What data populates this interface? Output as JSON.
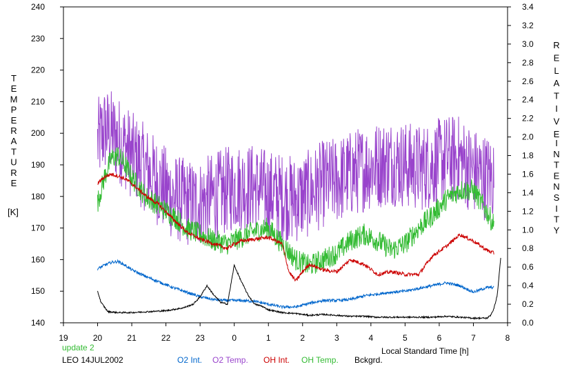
{
  "chart_data": {
    "type": "line",
    "title": "",
    "xlabel": "Local Standard Time [h]",
    "ylabel_left_letters": [
      "T",
      "E",
      "M",
      "P",
      "E",
      "R",
      "A",
      "T",
      "U",
      "R",
      "E"
    ],
    "ylabel_left_unit": "[K]",
    "ylabel_right_row1": [
      "R",
      "E",
      "L",
      "A",
      "T",
      "I",
      "V",
      "E"
    ],
    "ylabel_right_row2": [
      "I",
      "N",
      "T",
      "E",
      "N",
      "S",
      "I",
      "T",
      "Y"
    ],
    "x_tick_labels": [
      "19",
      "20",
      "21",
      "22",
      "23",
      "0",
      "1",
      "2",
      "3",
      "4",
      "5",
      "6",
      "7",
      "8"
    ],
    "xlim": [
      19,
      32
    ],
    "ylim_left": [
      140,
      240
    ],
    "ylim_right": [
      0,
      3.4
    ],
    "y_left_ticks": [
      "140",
      "150",
      "160",
      "170",
      "180",
      "190",
      "200",
      "210",
      "220",
      "230",
      "240"
    ],
    "y_right_ticks": [
      "0.0",
      "0.2",
      "0.4",
      "0.6",
      "0.8",
      "1.0",
      "1.2",
      "1.4",
      "1.6",
      "1.8",
      "2.0",
      "2.2",
      "2.4",
      "2.6",
      "2.8",
      "3.0",
      "3.2",
      "3.4"
    ],
    "grid": false,
    "legend_placement": "bottom",
    "update_note": "update 2",
    "site_date": "LEO 14JUL2002",
    "series": [
      {
        "name": "O2 Int.",
        "color": "#0066cc",
        "axis": "right",
        "x": [
          20.0,
          20.2,
          20.4,
          20.6,
          20.8,
          21.0,
          21.4,
          21.8,
          22.2,
          22.6,
          23.0,
          23.4,
          23.8,
          24.0,
          24.2,
          24.6,
          25.0,
          25.4,
          25.8,
          26.2,
          26.6,
          27.0,
          27.4,
          27.8,
          28.2,
          28.6,
          29.0,
          29.4,
          29.8,
          30.2,
          30.6,
          31.0,
          31.4,
          31.6
        ],
        "y": [
          0.58,
          0.62,
          0.65,
          0.66,
          0.62,
          0.57,
          0.5,
          0.44,
          0.38,
          0.33,
          0.28,
          0.25,
          0.24,
          0.24,
          0.24,
          0.23,
          0.2,
          0.17,
          0.17,
          0.21,
          0.24,
          0.24,
          0.25,
          0.29,
          0.31,
          0.33,
          0.34,
          0.37,
          0.4,
          0.43,
          0.4,
          0.33,
          0.38,
          0.38
        ],
        "noise": 0.015
      },
      {
        "name": "O2 Temp.",
        "color": "#9944cc",
        "axis": "left",
        "x": [
          20.0,
          20.2,
          20.4,
          20.6,
          20.8,
          21.0,
          21.4,
          21.8,
          22.2,
          22.6,
          23.0,
          23.4,
          23.8,
          24.0,
          24.2,
          24.6,
          25.0,
          25.4,
          25.8,
          26.2,
          26.6,
          27.0,
          27.4,
          27.8,
          28.2,
          28.6,
          29.0,
          29.4,
          29.8,
          30.2,
          30.6,
          31.0,
          31.4,
          31.6
        ],
        "y": [
          197,
          201,
          200,
          198,
          196,
          193,
          189,
          184,
          180,
          178,
          178,
          180,
          182,
          183,
          183,
          183,
          181,
          180,
          179,
          181,
          184,
          185,
          187,
          189,
          190,
          191,
          190,
          189,
          190,
          192,
          192,
          188,
          186,
          186
        ],
        "noise": 14
      },
      {
        "name": "OH Int.",
        "color": "#cc0000",
        "axis": "right",
        "x": [
          20.0,
          20.2,
          20.4,
          20.6,
          20.8,
          21.0,
          21.4,
          21.8,
          22.2,
          22.6,
          23.0,
          23.4,
          23.8,
          24.0,
          24.2,
          24.6,
          25.0,
          25.4,
          25.6,
          25.8,
          26.0,
          26.2,
          26.6,
          27.0,
          27.4,
          27.8,
          28.2,
          28.6,
          29.0,
          29.4,
          29.8,
          30.2,
          30.6,
          31.0,
          31.4,
          31.6
        ],
        "y": [
          1.5,
          1.57,
          1.6,
          1.58,
          1.55,
          1.5,
          1.37,
          1.27,
          1.12,
          0.98,
          0.9,
          0.85,
          0.8,
          0.85,
          0.88,
          0.9,
          0.92,
          0.85,
          0.55,
          0.45,
          0.55,
          0.63,
          0.57,
          0.55,
          0.68,
          0.63,
          0.52,
          0.55,
          0.52,
          0.52,
          0.72,
          0.82,
          0.95,
          0.88,
          0.78,
          0.75
        ],
        "noise": 0.02
      },
      {
        "name": "OH Temp.",
        "color": "#33bb33",
        "axis": "left",
        "x": [
          20.0,
          20.2,
          20.4,
          20.6,
          20.8,
          21.0,
          21.4,
          21.8,
          22.2,
          22.6,
          23.0,
          23.4,
          23.8,
          24.0,
          24.2,
          24.6,
          25.0,
          25.4,
          25.8,
          26.2,
          26.6,
          27.0,
          27.4,
          27.8,
          28.2,
          28.6,
          29.0,
          29.4,
          29.8,
          30.2,
          30.6,
          31.0,
          31.4,
          31.6
        ],
        "y": [
          178,
          186,
          192,
          193,
          190,
          186,
          180,
          177,
          174,
          170,
          168,
          166,
          165,
          166,
          167,
          169,
          170,
          165,
          160,
          158,
          160,
          162,
          166,
          168,
          166,
          163,
          165,
          170,
          174,
          179,
          182,
          182,
          175,
          171
        ],
        "noise": 3.5
      },
      {
        "name": "Bckgrd.",
        "color": "#000000",
        "axis": "right",
        "x": [
          20.0,
          20.1,
          20.3,
          20.6,
          21.0,
          21.5,
          22.0,
          22.5,
          22.8,
          23.0,
          23.2,
          23.4,
          23.6,
          23.8,
          24.0,
          24.2,
          24.4,
          24.6,
          24.8,
          25.0,
          25.4,
          25.8,
          26.2,
          26.6,
          27.0,
          27.4,
          27.8,
          28.2,
          28.6,
          29.0,
          29.4,
          29.8,
          30.2,
          30.6,
          31.0,
          31.4,
          31.5,
          31.6,
          31.7,
          31.8
        ],
        "y": [
          0.34,
          0.22,
          0.12,
          0.11,
          0.11,
          0.12,
          0.13,
          0.16,
          0.2,
          0.28,
          0.4,
          0.3,
          0.22,
          0.2,
          0.62,
          0.45,
          0.3,
          0.2,
          0.18,
          0.14,
          0.11,
          0.1,
          0.08,
          0.09,
          0.08,
          0.07,
          0.07,
          0.06,
          0.06,
          0.06,
          0.06,
          0.06,
          0.07,
          0.06,
          0.05,
          0.05,
          0.08,
          0.15,
          0.3,
          0.7
        ],
        "noise": 0.008
      }
    ]
  }
}
